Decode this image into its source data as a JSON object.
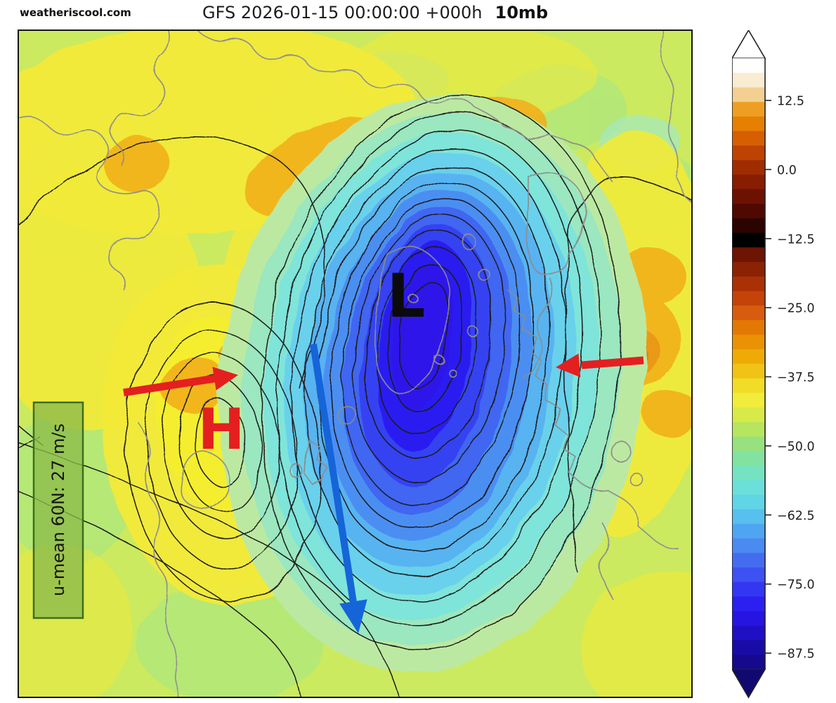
{
  "header": {
    "watermark": "weatheriscool.com",
    "title": "GFS 2026-01-15 00:00:00 +000h",
    "level": "10mb"
  },
  "map": {
    "low_marker": "L",
    "high_marker": "H",
    "umean_label": "u-mean 60N: 27 m/s",
    "colors": {
      "high_marker": "#e41f1f",
      "low_marker": "#0b0b0b",
      "red_arrow": "#e41f1f",
      "blue_arrow": "#1565d9",
      "umean_box_fill": "#8dbc4b",
      "umean_box_border": "#3d6e1d",
      "contour_line": "#1c1c1c",
      "coastline": "#8d8d8d",
      "base_fill": "#cbea5e",
      "vortex_core": "#2d12ea",
      "warm_patch": "#f1b11c"
    }
  },
  "colorbar": {
    "ticks": [
      {
        "value": 12.5,
        "label": "12.5"
      },
      {
        "value": 0.0,
        "label": "0.0"
      },
      {
        "value": -12.5,
        "label": "−12.5"
      },
      {
        "value": -25.0,
        "label": "−25.0"
      },
      {
        "value": -37.5,
        "label": "−37.5"
      },
      {
        "value": -50.0,
        "label": "−50.0"
      },
      {
        "value": -62.5,
        "label": "−62.5"
      },
      {
        "value": -75.0,
        "label": "−75.0"
      },
      {
        "value": -87.5,
        "label": "−87.5"
      }
    ],
    "segments": [
      "#fefefe",
      "#f8ecd2",
      "#f3cf92",
      "#ee9f23",
      "#e67f02",
      "#d65f01",
      "#bc4301",
      "#a02c01",
      "#871d01",
      "#6d1201",
      "#4f0901",
      "#2b0400",
      "#000000",
      "#6d1403",
      "#8c2204",
      "#aa3105",
      "#c44309",
      "#d85c0d",
      "#e37805",
      "#ea9203",
      "#eeab06",
      "#f0c314",
      "#f1dc28",
      "#f2ec3c",
      "#d8ea48",
      "#b8e55f",
      "#97e17e",
      "#82e29f",
      "#76e3c0",
      "#6bdfda",
      "#5fd5e6",
      "#57c0ee",
      "#4fa5f1",
      "#4a8af1",
      "#446cf1",
      "#3e51f2",
      "#3337f2",
      "#2b20f0",
      "#2615e2",
      "#2010c4",
      "#190ca6",
      "#150a8e"
    ],
    "over_arrow_color": "#ffffff",
    "under_arrow_color": "#120970"
  }
}
